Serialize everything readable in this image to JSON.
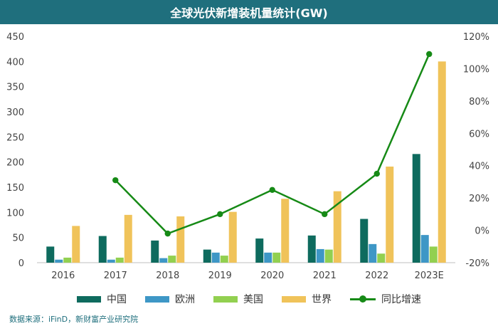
{
  "chart_data": {
    "type": "bar",
    "title": "全球光伏新增装机量统计(GW)",
    "categories": [
      "2016",
      "2017",
      "2018",
      "2019",
      "2020",
      "2021",
      "2022",
      "2023E"
    ],
    "series": [
      {
        "name": "中国",
        "type": "bar",
        "axis": "left",
        "color": "#0e6b5e",
        "values": [
          32,
          53,
          44,
          26,
          48,
          54,
          87,
          216
        ]
      },
      {
        "name": "欧洲",
        "type": "bar",
        "axis": "left",
        "color": "#3e97c6",
        "values": [
          6,
          6,
          9,
          20,
          20,
          27,
          37,
          55
        ]
      },
      {
        "name": "美国",
        "type": "bar",
        "axis": "left",
        "color": "#92d050",
        "values": [
          10,
          10,
          14,
          14,
          20,
          26,
          18,
          32
        ]
      },
      {
        "name": "世界",
        "type": "bar",
        "axis": "left",
        "color": "#f0c35a",
        "values": [
          73,
          95,
          92,
          101,
          127,
          142,
          191,
          400
        ]
      },
      {
        "name": "同比增速",
        "type": "line",
        "axis": "right",
        "color": "#168a16",
        "values": [
          null,
          31,
          -2,
          10,
          25,
          10,
          35,
          109
        ]
      }
    ],
    "y_left": {
      "min": 0,
      "max": 450,
      "ticks": [
        "0",
        "50",
        "100",
        "150",
        "200",
        "250",
        "300",
        "350",
        "400",
        "450"
      ]
    },
    "y_right": {
      "min": -20,
      "max": 120,
      "ticks": [
        "-20%",
        "0%",
        "20%",
        "40%",
        "60%",
        "80%",
        "100%",
        "120%"
      ]
    },
    "grid": false,
    "legend_position": "bottom"
  },
  "source": "数据来源：iFinD，新财富产业研究院"
}
